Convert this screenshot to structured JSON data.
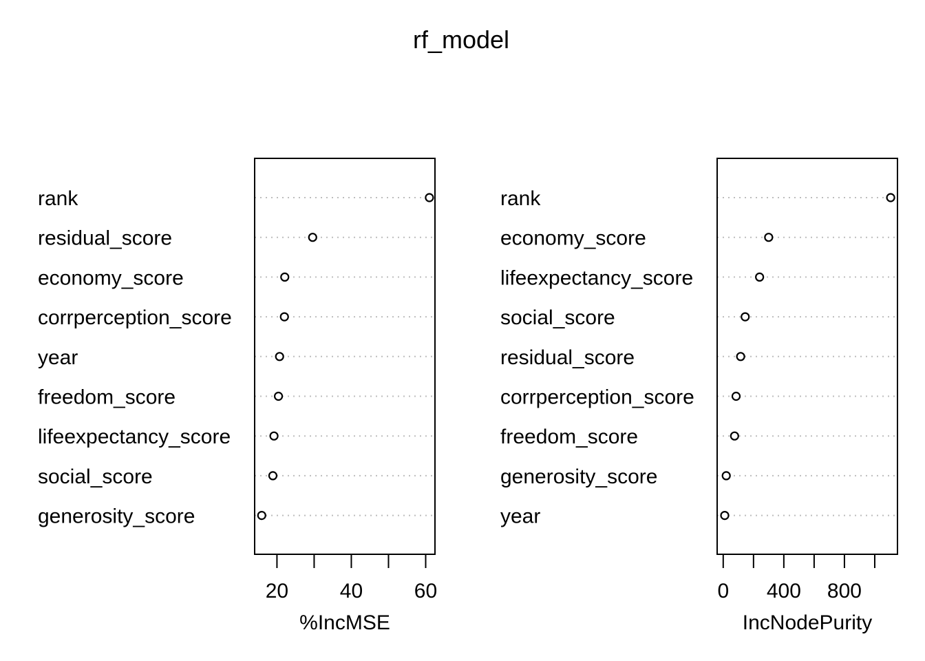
{
  "title": "rf_model",
  "chart_data": [
    {
      "type": "scatter",
      "xlabel": "%IncMSE",
      "ylabel": "",
      "xlim": [
        14,
        62.5
      ],
      "xticks": [
        20,
        30,
        40,
        50,
        60
      ],
      "xtick_labels": [
        "20",
        "",
        "40",
        "",
        "60"
      ],
      "grid": "dotted horizontal",
      "categories": [
        "rank",
        "residual_score",
        "economy_score",
        "corrperception_score",
        "year",
        "freedom_score",
        "lifeexpectancy_score",
        "social_score",
        "generosity_score"
      ],
      "values": [
        61.0,
        29.6,
        22.1,
        22.0,
        20.7,
        20.4,
        19.2,
        18.9,
        15.9
      ]
    },
    {
      "type": "scatter",
      "xlabel": "IncNodePurity",
      "ylabel": "",
      "xlim": [
        -40,
        1150
      ],
      "xticks": [
        0,
        200,
        400,
        600,
        800,
        1000
      ],
      "xtick_labels": [
        "0",
        "",
        "400",
        "",
        "800",
        ""
      ],
      "grid": "dotted horizontal",
      "categories": [
        "rank",
        "economy_score",
        "lifeexpectancy_score",
        "social_score",
        "residual_score",
        "corrperception_score",
        "freedom_score",
        "generosity_score",
        "year"
      ],
      "values": [
        1105,
        300,
        240,
        145,
        115,
        85,
        75,
        20,
        10
      ]
    }
  ]
}
